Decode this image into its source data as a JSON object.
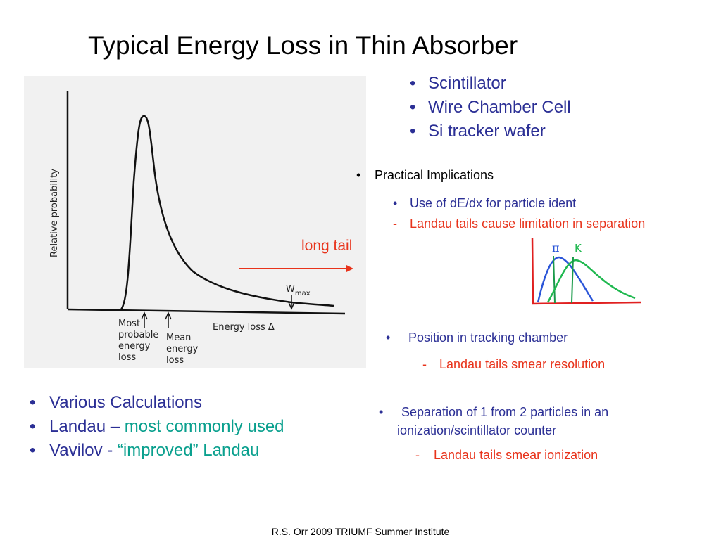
{
  "title": "Typical Energy Loss in Thin Absorber",
  "plot": {
    "ylabel": "Relative probability",
    "xlabel": "Energy loss Δ",
    "wmax_label": "W",
    "wmax_sub": "max",
    "most_probable": [
      "Most",
      "probable",
      "energy",
      "loss"
    ],
    "mean": [
      "Mean",
      "energy",
      "loss"
    ]
  },
  "long_tail": "long tail",
  "absorbers": [
    "Scintillator",
    "Wire Chamber Cell",
    "Si tracker wafer"
  ],
  "practical": {
    "heading": "Practical Implications",
    "item1": "Use of dE/dx for particle ident",
    "item1_sub": "Landau tails cause  limitation in separation",
    "sketch_labels": [
      "π",
      "K"
    ],
    "item2": "Position in tracking chamber",
    "item2_sub": "Landau tails smear resolution",
    "item3_line1": "Separation of 1 from 2 particles in an",
    "item3_line2": "ionization/scintillator counter",
    "item3_sub": "Landau tails smear ionization"
  },
  "calcs": {
    "l1": "Various Calculations",
    "l2a": "Landau – ",
    "l2b": "most commonly used",
    "l3a": "Vavilov - ",
    "l3b": " “improved” Landau"
  },
  "footer": "R.S. Orr 2009 TRIUMF Summer Institute",
  "colors": {
    "blue": "#2b2f95",
    "red": "#e8331b",
    "teal": "#0aa08e",
    "arrow": "#e8331b"
  }
}
